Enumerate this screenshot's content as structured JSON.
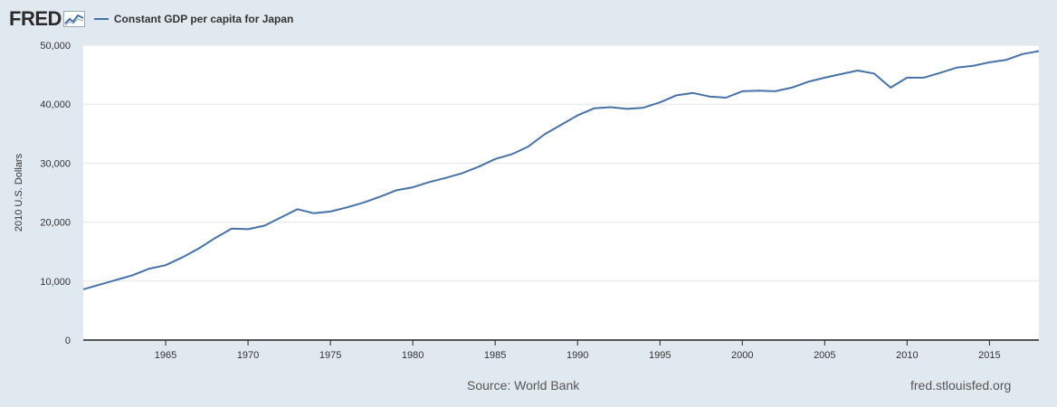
{
  "header": {
    "logo": "FRED",
    "legend_label": "Constant GDP per capita for Japan"
  },
  "footer": {
    "source": "Source: World Bank",
    "site": "fred.stlouisfed.org"
  },
  "colors": {
    "background": "#e1e9f0",
    "plot_background": "#ffffff",
    "series_line": "#4572a7",
    "gridline": "#e6e6e6",
    "axis_line": "#222222"
  },
  "chart_data": {
    "type": "line",
    "title": "",
    "xlabel": "",
    "ylabel": "2010 U.S. Dollars",
    "xlim": [
      1960,
      2018
    ],
    "ylim": [
      0,
      50000
    ],
    "x_ticks": [
      1965,
      1970,
      1975,
      1980,
      1985,
      1990,
      1995,
      2000,
      2005,
      2010,
      2015
    ],
    "y_ticks": [
      0,
      10000,
      20000,
      30000,
      40000,
      50000
    ],
    "y_tick_labels": [
      "0",
      "10,000",
      "20,000",
      "30,000",
      "40,000",
      "50,000"
    ],
    "grid": true,
    "legend": "top-left",
    "series": [
      {
        "name": "Constant GDP per capita for Japan",
        "x": [
          1960,
          1961,
          1962,
          1963,
          1964,
          1965,
          1966,
          1967,
          1968,
          1969,
          1970,
          1971,
          1972,
          1973,
          1974,
          1975,
          1976,
          1977,
          1978,
          1979,
          1980,
          1981,
          1982,
          1983,
          1984,
          1985,
          1986,
          1987,
          1988,
          1989,
          1990,
          1991,
          1992,
          1993,
          1994,
          1995,
          1996,
          1997,
          1998,
          1999,
          2000,
          2001,
          2002,
          2003,
          2004,
          2005,
          2006,
          2007,
          2008,
          2009,
          2010,
          2011,
          2012,
          2013,
          2014,
          2015,
          2016,
          2017,
          2018
        ],
        "y": [
          8600,
          9400,
          10200,
          11000,
          12100,
          12700,
          14000,
          15500,
          17300,
          18900,
          18800,
          19400,
          20800,
          22200,
          21500,
          21800,
          22500,
          23300,
          24300,
          25400,
          25900,
          26800,
          27500,
          28300,
          29400,
          30700,
          31500,
          32800,
          34900,
          36500,
          38100,
          39300,
          39500,
          39200,
          39400,
          40300,
          41500,
          41900,
          41300,
          41100,
          42200,
          42300,
          42200,
          42800,
          43800,
          44500,
          45100,
          45700,
          45200,
          42800,
          44500,
          44500,
          45300,
          46200,
          46500,
          47100,
          47500,
          48500,
          49000
        ]
      }
    ]
  }
}
